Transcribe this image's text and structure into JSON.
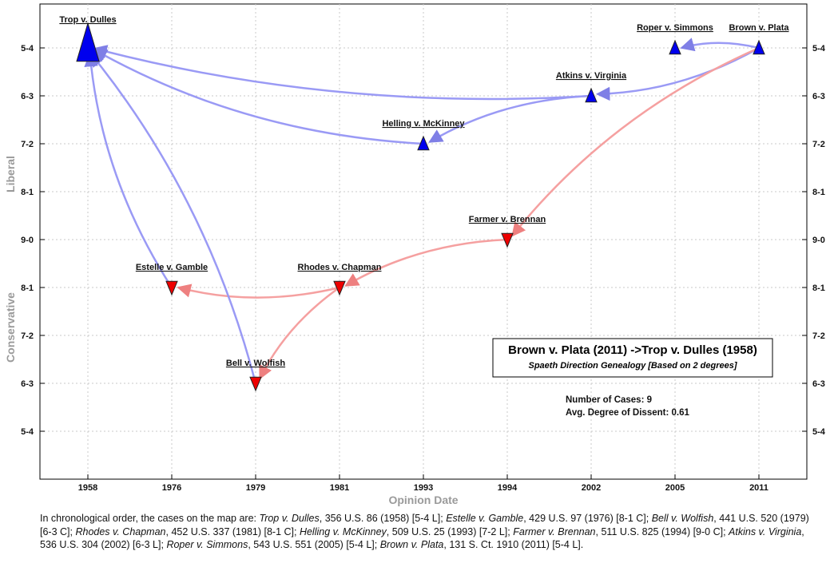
{
  "chart_data": {
    "type": "scatter",
    "title": "Brown v. Plata (2011) ->Trop v. Dulles (1958)",
    "subtitle": "Spaeth Direction Genealogy [Based on 2 degrees]",
    "xlabel": "Opinion Date",
    "ylabel_top": "Liberal",
    "ylabel_bottom": "Conservative",
    "categories": [
      "1958",
      "1976",
      "1979",
      "1981",
      "1993",
      "1994",
      "2002",
      "2005",
      "2011"
    ],
    "y_tick_labels": [
      "5-4",
      "6-3",
      "7-2",
      "8-1",
      "9-0",
      "8-1",
      "7-2",
      "6-3",
      "5-4"
    ],
    "y_levels_note": "level 4 = 5-4 liberal ... level 0 = 9-0 ... level -4 = 5-4 conservative",
    "ylim": [
      -5,
      5
    ],
    "grid": true,
    "cases": [
      {
        "name": "Trop v. Dulles",
        "year": "1958",
        "level": 4,
        "direction": "liberal",
        "size": "large"
      },
      {
        "name": "Estelle v. Gamble",
        "year": "1976",
        "level": -1,
        "direction": "conservative",
        "size": "normal"
      },
      {
        "name": "Bell v. Wolfish",
        "year": "1979",
        "level": -3,
        "direction": "conservative",
        "size": "normal"
      },
      {
        "name": "Rhodes v. Chapman",
        "year": "1981",
        "level": -1,
        "direction": "conservative",
        "size": "normal"
      },
      {
        "name": "Helling v. McKinney",
        "year": "1993",
        "level": 2,
        "direction": "liberal",
        "size": "normal"
      },
      {
        "name": "Farmer v. Brennan",
        "year": "1994",
        "level": 0,
        "direction": "conservative",
        "size": "normal"
      },
      {
        "name": "Atkins v. Virginia",
        "year": "2002",
        "level": 3,
        "direction": "liberal",
        "size": "normal"
      },
      {
        "name": "Roper v. Simmons",
        "year": "2005",
        "level": 4,
        "direction": "liberal",
        "size": "normal"
      },
      {
        "name": "Brown v. Plata",
        "year": "2011",
        "level": 4,
        "direction": "liberal",
        "size": "normal"
      }
    ],
    "edges": [
      {
        "from": "Brown v. Plata",
        "to": "Roper v. Simmons",
        "direction": "liberal"
      },
      {
        "from": "Brown v. Plata",
        "to": "Atkins v. Virginia",
        "direction": "liberal"
      },
      {
        "from": "Brown v. Plata",
        "to": "Farmer v. Brennan",
        "direction": "conservative"
      },
      {
        "from": "Atkins v. Virginia",
        "to": "Trop v. Dulles",
        "direction": "liberal"
      },
      {
        "from": "Atkins v. Virginia",
        "to": "Helling v. McKinney",
        "direction": "liberal"
      },
      {
        "from": "Helling v. McKinney",
        "to": "Trop v. Dulles",
        "direction": "liberal"
      },
      {
        "from": "Farmer v. Brennan",
        "to": "Rhodes v. Chapman",
        "direction": "conservative"
      },
      {
        "from": "Rhodes v. Chapman",
        "to": "Estelle v. Gamble",
        "direction": "conservative"
      },
      {
        "from": "Rhodes v. Chapman",
        "to": "Bell v. Wolfish",
        "direction": "conservative"
      },
      {
        "from": "Estelle v. Gamble",
        "to": "Trop v. Dulles",
        "direction": "liberal"
      },
      {
        "from": "Bell v. Wolfish",
        "to": "Trop v. Dulles",
        "direction": "liberal"
      }
    ],
    "stats": {
      "cases_text": "Number of Cases: 9",
      "dissent_text": "Avg. Degree of Dissent: 0.61"
    },
    "colors": {
      "liberal_marker": "#0000ee",
      "conservative_marker": "#ee0000",
      "liberal_edge": "#9a9af5",
      "conservative_edge": "#f5a0a0"
    }
  },
  "caption": {
    "intro": "In chronological order, the cases on the map are:",
    "items": [
      {
        "name": "Trop v. Dulles",
        "citation": ", 356 U.S. 86 (1958) [5-4 L]; "
      },
      {
        "name": "Estelle v. Gamble",
        "citation": ", 429 U.S. 97 (1976) [8-1 C]; "
      },
      {
        "name": "Bell v. Wolfish",
        "citation": ", 441 U.S. 520 (1979) [6-3 C]; "
      },
      {
        "name": "Rhodes v. Chapman",
        "citation": ", 452 U.S. 337 (1981) [8-1 C]; "
      },
      {
        "name": "Helling v. McKinney",
        "citation": ", 509 U.S. 25 (1993) [7-2 L]; "
      },
      {
        "name": "Farmer v. Brennan",
        "citation": ", 511 U.S. 825 (1994) [9-0 C]; "
      },
      {
        "name": "Atkins v. Virginia",
        "citation": ", 536 U.S. 304 (2002) [6-3 L]; "
      },
      {
        "name": "Roper v. Simmons",
        "citation": ", 543 U.S. 551 (2005) [5-4 L]; "
      },
      {
        "name": "Brown v. Plata",
        "citation": ", 131 S. Ct. 1910 (2011) [5-4 L]."
      }
    ]
  }
}
